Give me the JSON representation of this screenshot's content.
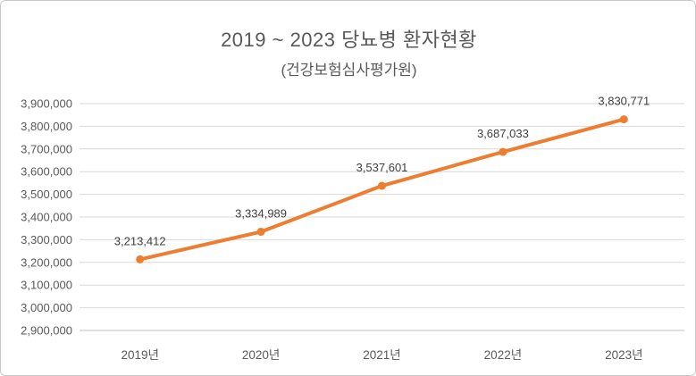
{
  "page": {
    "background_color": "#FFFFFF",
    "border_color": "#C9C9C9"
  },
  "chart_data": {
    "type": "line",
    "title": "2019 ~ 2023 당뇨병 환자현황",
    "subtitle": "(건강보험심사평가원)",
    "categories": [
      "2019년",
      "2020년",
      "2021년",
      "2022년",
      "2023년"
    ],
    "series": [
      {
        "name": "",
        "values": [
          3213412,
          3334989,
          3537601,
          3687033,
          3830771
        ],
        "data_labels": [
          "3,213,412",
          "3,334,989",
          "3,537,601",
          "3,687,033",
          "3,830,771"
        ]
      }
    ],
    "xlabel": "",
    "ylabel": "",
    "ylim": [
      2900000,
      3900000
    ],
    "y_tick_step": 100000,
    "y_tick_labels": [
      "2,900,000",
      "3,000,000",
      "3,100,000",
      "3,200,000",
      "3,300,000",
      "3,400,000",
      "3,500,000",
      "3,600,000",
      "3,700,000",
      "3,800,000",
      "3,900,000"
    ],
    "grid": true,
    "legend_position": "none",
    "colors": {
      "line": "#ED7D31",
      "marker": "#ED7D31",
      "gridline": "#D9D9D9",
      "axis_line": "#BFBFBF",
      "title_text": "#595959",
      "axis_text": "#595959",
      "data_label_text": "#404040"
    }
  }
}
